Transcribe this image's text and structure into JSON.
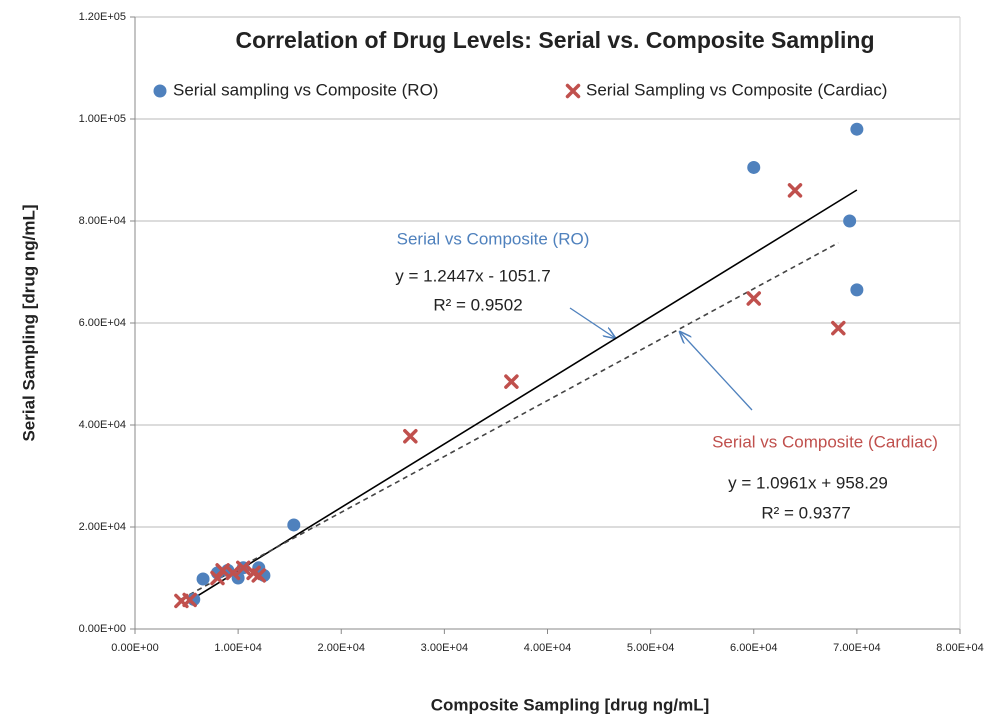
{
  "chart_data": {
    "type": "scatter",
    "title": "Correlation of Drug Levels:  Serial vs. Composite Sampling",
    "x_label": "Composite Sampling [drug ng/mL]",
    "y_label": "Serial Sampling [drug ng/mL]",
    "xlim": [
      0,
      80000
    ],
    "ylim": [
      0,
      120000
    ],
    "xticks": [
      {
        "value": 0,
        "label": "0.00E+00"
      },
      {
        "value": 10000,
        "label": "1.00E+04"
      },
      {
        "value": 20000,
        "label": "2.00E+04"
      },
      {
        "value": 30000,
        "label": "3.00E+04"
      },
      {
        "value": 40000,
        "label": "4.00E+04"
      },
      {
        "value": 50000,
        "label": "5.00E+04"
      },
      {
        "value": 60000,
        "label": "6.00E+04"
      },
      {
        "value": 70000,
        "label": "7.00E+04"
      },
      {
        "value": 80000,
        "label": "8.00E+04"
      }
    ],
    "yticks": [
      {
        "value": 0,
        "label": "0.00E+00"
      },
      {
        "value": 20000,
        "label": "2.00E+04"
      },
      {
        "value": 40000,
        "label": "4.00E+04"
      },
      {
        "value": 60000,
        "label": "6.00E+04"
      },
      {
        "value": 80000,
        "label": "8.00E+04"
      },
      {
        "value": 100000,
        "label": "1.00E+05"
      },
      {
        "value": 120000,
        "label": "1.20E+05"
      }
    ],
    "grid": true,
    "legend_position": "top",
    "series": [
      {
        "name": "Serial sampling vs Composite (RO)",
        "color": "#4f81bd",
        "marker": "circle",
        "x": [
          5700,
          6600,
          8000,
          9000,
          10000,
          10500,
          12000,
          12500,
          15400,
          60000,
          70000,
          69300,
          70000
        ],
        "values": [
          5800,
          9800,
          11000,
          11500,
          10000,
          12000,
          12000,
          10500,
          20400,
          90500,
          98000,
          80000,
          66500
        ],
        "trendline": {
          "label": "Serial vs Composite (RO)",
          "equation": "y = 1.2447x - 1051.7",
          "r2": "R² = 0.9502",
          "slope": 1.2447,
          "intercept": -1051.7,
          "style": "solid",
          "color": "#000000"
        }
      },
      {
        "name": "Serial Sampling vs Composite (Cardiac)",
        "color": "#c0504d",
        "marker": "x",
        "x": [
          4500,
          5300,
          8000,
          8500,
          9500,
          10500,
          11500,
          12000,
          26700,
          36500,
          60000,
          64000,
          68200
        ],
        "values": [
          5500,
          5700,
          10000,
          11500,
          11000,
          12000,
          11000,
          10500,
          37800,
          48500,
          64800,
          86000,
          59000
        ],
        "trendline": {
          "label": "Serial vs Composite (Cardiac)",
          "equation": "y = 1.0961x + 958.29",
          "r2": "R² = 0.9377",
          "slope": 1.0961,
          "intercept": 958.29,
          "style": "dashed",
          "color": "#444444"
        }
      }
    ]
  }
}
